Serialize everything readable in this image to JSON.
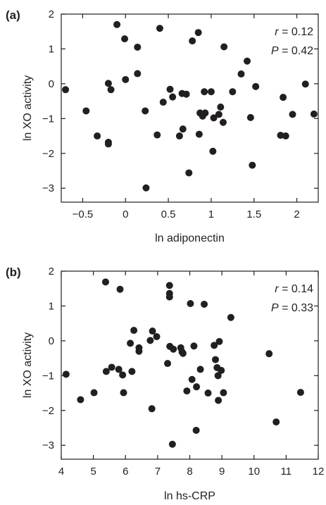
{
  "chart_data": [
    {
      "type": "scatter",
      "panel_label": "(a)",
      "xlabel": "ln adiponectin",
      "ylabel": "ln XO activity",
      "xlim": [
        -0.75,
        2.25
      ],
      "ylim": [
        -3.4,
        2.0
      ],
      "xticks": [
        "−0.5",
        "0",
        "0.5",
        "1",
        "1.5",
        "2"
      ],
      "xtick_values": [
        -0.5,
        0,
        0.5,
        1,
        1.5,
        2
      ],
      "yticks": [
        "2",
        "1",
        "0",
        "−1",
        "−2",
        "−3"
      ],
      "ytick_values": [
        2,
        1,
        0,
        -1,
        -2,
        -3
      ],
      "stats": {
        "r_label": "r",
        "r_value": " = 0.12",
        "p_label": "P",
        "p_value": " = 0.42"
      },
      "marker_color": "#231f20",
      "grid": false,
      "points": [
        {
          "x": -0.7,
          "y": -0.17
        },
        {
          "x": -0.46,
          "y": -0.78
        },
        {
          "x": -0.33,
          "y": -1.5
        },
        {
          "x": -0.2,
          "y": -1.68
        },
        {
          "x": -0.2,
          "y": -1.73
        },
        {
          "x": -0.2,
          "y": 0.01
        },
        {
          "x": -0.17,
          "y": -0.17
        },
        {
          "x": -0.1,
          "y": 1.7
        },
        {
          "x": -0.01,
          "y": 1.29
        },
        {
          "x": 0.0,
          "y": 0.12
        },
        {
          "x": 0.14,
          "y": 1.05
        },
        {
          "x": 0.14,
          "y": 0.29
        },
        {
          "x": 0.23,
          "y": -0.78
        },
        {
          "x": 0.24,
          "y": -2.99
        },
        {
          "x": 0.37,
          "y": -1.47
        },
        {
          "x": 0.4,
          "y": 1.59
        },
        {
          "x": 0.44,
          "y": -0.53
        },
        {
          "x": 0.52,
          "y": -0.16
        },
        {
          "x": 0.55,
          "y": -0.38
        },
        {
          "x": 0.63,
          "y": -1.5
        },
        {
          "x": 0.66,
          "y": -0.28
        },
        {
          "x": 0.67,
          "y": -1.3
        },
        {
          "x": 0.71,
          "y": -0.3
        },
        {
          "x": 0.74,
          "y": -2.56
        },
        {
          "x": 0.78,
          "y": 1.23
        },
        {
          "x": 0.85,
          "y": 1.47
        },
        {
          "x": 0.86,
          "y": -1.45
        },
        {
          "x": 0.87,
          "y": -0.84
        },
        {
          "x": 0.9,
          "y": -0.93
        },
        {
          "x": 0.92,
          "y": -0.23
        },
        {
          "x": 0.93,
          "y": -0.84
        },
        {
          "x": 1.0,
          "y": -0.23
        },
        {
          "x": 1.02,
          "y": -1.94
        },
        {
          "x": 1.03,
          "y": -0.98
        },
        {
          "x": 1.09,
          "y": -0.88
        },
        {
          "x": 1.11,
          "y": -0.67
        },
        {
          "x": 1.14,
          "y": -1.11
        },
        {
          "x": 1.15,
          "y": 1.06
        },
        {
          "x": 1.25,
          "y": -0.23
        },
        {
          "x": 1.35,
          "y": 0.28
        },
        {
          "x": 1.42,
          "y": 0.65
        },
        {
          "x": 1.46,
          "y": -0.97
        },
        {
          "x": 1.48,
          "y": -2.34
        },
        {
          "x": 1.52,
          "y": -0.08
        },
        {
          "x": 1.81,
          "y": -1.48
        },
        {
          "x": 1.84,
          "y": -0.39
        },
        {
          "x": 1.87,
          "y": -1.5
        },
        {
          "x": 1.95,
          "y": -0.88
        },
        {
          "x": 2.1,
          "y": -0.01
        },
        {
          "x": 2.2,
          "y": -0.87
        }
      ]
    },
    {
      "type": "scatter",
      "panel_label": "(b)",
      "xlabel": "ln hs-CRP",
      "ylabel": "ln XO activity",
      "xlim": [
        4.0,
        12.0
      ],
      "ylim": [
        -3.4,
        2.0
      ],
      "xticks": [
        "4",
        "5",
        "6",
        "7",
        "8",
        "9",
        "10",
        "11",
        "12"
      ],
      "xtick_values": [
        4,
        5,
        6,
        7,
        8,
        9,
        10,
        11,
        12
      ],
      "yticks": [
        "2",
        "1",
        "0",
        "−1",
        "−2",
        "−3"
      ],
      "ytick_values": [
        2,
        1,
        0,
        -1,
        -2,
        -3
      ],
      "stats": {
        "r_label": "r",
        "r_value": " = 0.14",
        "p_label": "P",
        "p_value": " = 0.33"
      },
      "marker_color": "#231f20",
      "grid": false,
      "points": [
        {
          "x": 4.15,
          "y": -0.96
        },
        {
          "x": 4.6,
          "y": -1.69
        },
        {
          "x": 5.02,
          "y": -1.49
        },
        {
          "x": 5.38,
          "y": 1.69
        },
        {
          "x": 5.4,
          "y": -0.88
        },
        {
          "x": 5.57,
          "y": -0.76
        },
        {
          "x": 5.79,
          "y": -0.82
        },
        {
          "x": 5.83,
          "y": 1.48
        },
        {
          "x": 5.91,
          "y": -0.98
        },
        {
          "x": 5.94,
          "y": -1.49
        },
        {
          "x": 6.15,
          "y": -0.07
        },
        {
          "x": 6.2,
          "y": -0.88
        },
        {
          "x": 6.26,
          "y": 0.3
        },
        {
          "x": 6.42,
          "y": -0.2
        },
        {
          "x": 6.42,
          "y": -0.3
        },
        {
          "x": 6.77,
          "y": 0.01
        },
        {
          "x": 6.82,
          "y": -1.95
        },
        {
          "x": 6.84,
          "y": 0.28
        },
        {
          "x": 6.97,
          "y": 0.12
        },
        {
          "x": 7.31,
          "y": -0.65
        },
        {
          "x": 7.37,
          "y": 1.59
        },
        {
          "x": 7.37,
          "y": 1.36
        },
        {
          "x": 7.37,
          "y": 1.26
        },
        {
          "x": 7.38,
          "y": -0.16
        },
        {
          "x": 7.46,
          "y": -2.97
        },
        {
          "x": 7.49,
          "y": -0.24
        },
        {
          "x": 7.72,
          "y": -0.2
        },
        {
          "x": 7.76,
          "y": -0.32
        },
        {
          "x": 7.79,
          "y": -0.36
        },
        {
          "x": 7.91,
          "y": -1.44
        },
        {
          "x": 8.02,
          "y": 1.07
        },
        {
          "x": 8.07,
          "y": -1.11
        },
        {
          "x": 8.13,
          "y": -0.15
        },
        {
          "x": 8.2,
          "y": -2.57
        },
        {
          "x": 8.21,
          "y": -1.32
        },
        {
          "x": 8.33,
          "y": -0.82
        },
        {
          "x": 8.45,
          "y": 1.05
        },
        {
          "x": 8.57,
          "y": -1.5
        },
        {
          "x": 8.76,
          "y": -0.13
        },
        {
          "x": 8.8,
          "y": -0.54
        },
        {
          "x": 8.85,
          "y": -0.77
        },
        {
          "x": 8.88,
          "y": -1.0
        },
        {
          "x": 8.89,
          "y": -1.71
        },
        {
          "x": 8.92,
          "y": -0.02
        },
        {
          "x": 8.98,
          "y": -0.85
        },
        {
          "x": 9.05,
          "y": -1.49
        },
        {
          "x": 9.28,
          "y": 0.67
        },
        {
          "x": 10.47,
          "y": -0.37
        },
        {
          "x": 10.69,
          "y": -2.33
        },
        {
          "x": 11.45,
          "y": -1.48
        }
      ]
    }
  ]
}
